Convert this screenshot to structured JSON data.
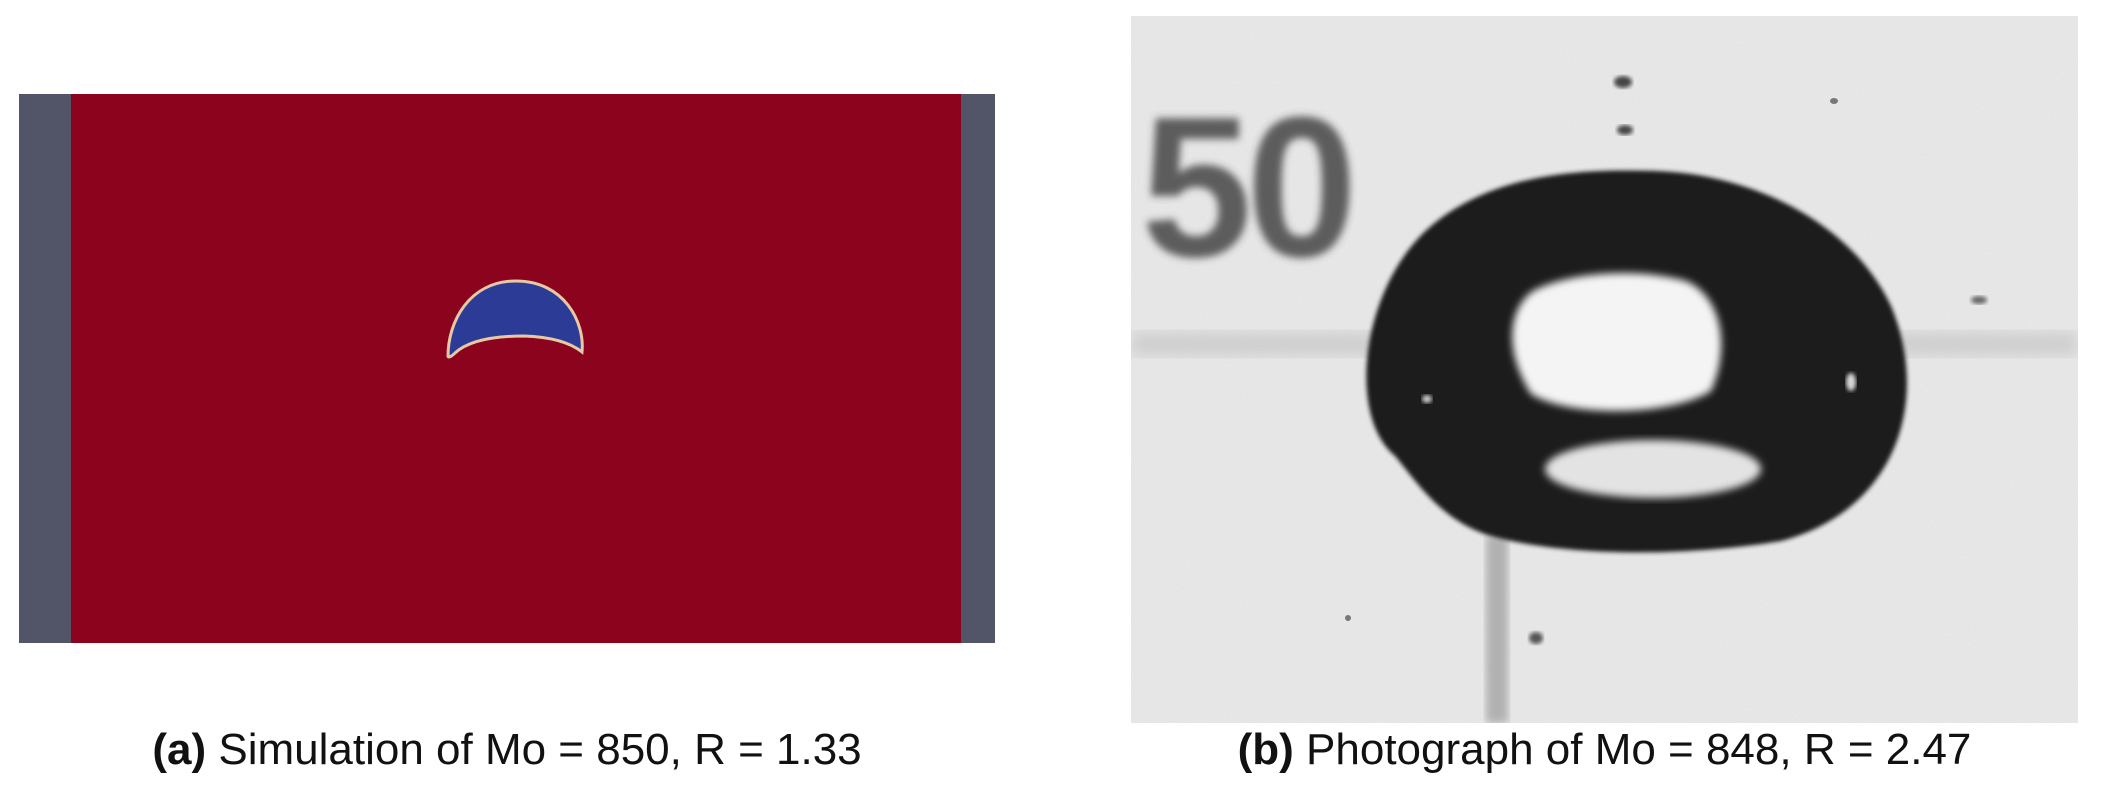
{
  "figure": {
    "panel_a": {
      "caption_tag": "(a)",
      "caption_text": "Simulation of Mo = 850, R = 1.33",
      "colors": {
        "wall": "#525468",
        "fluid": "#8b031d",
        "bubble": "#2c3c96",
        "interface": "#e8c9a6"
      }
    },
    "panel_b": {
      "caption_tag": "(b)",
      "caption_text": "Photograph of Mo = 848, R = 2.47",
      "photo_label": "50",
      "colors": {
        "background": "#ececec",
        "bubble": "#1a1a1a",
        "wake": "#f4f4f4"
      }
    }
  }
}
